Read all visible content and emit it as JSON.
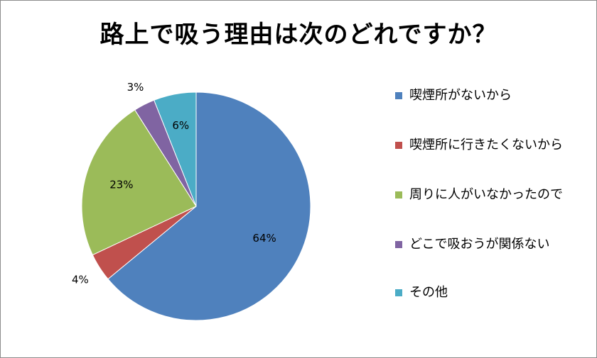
{
  "chart_data": {
    "type": "pie",
    "title": "路上で吸う理由は次のどれですか？",
    "slices": [
      {
        "label": "喫煙所がないから",
        "value": 64,
        "display": "64%",
        "color": "#4F81BD"
      },
      {
        "label": "喫煙所に行きたくないから",
        "value": 4,
        "display": "4%",
        "color": "#C0504D"
      },
      {
        "label": "周りに人がいなかったので",
        "value": 23,
        "display": "23%",
        "color": "#9BBB59"
      },
      {
        "label": "どこで吸おうが関係ない",
        "value": 3,
        "display": "3%",
        "color": "#8064A2"
      },
      {
        "label": "その他",
        "value": 6,
        "display": "6%",
        "color": "#4BACC6"
      }
    ],
    "legend_position": "right"
  }
}
